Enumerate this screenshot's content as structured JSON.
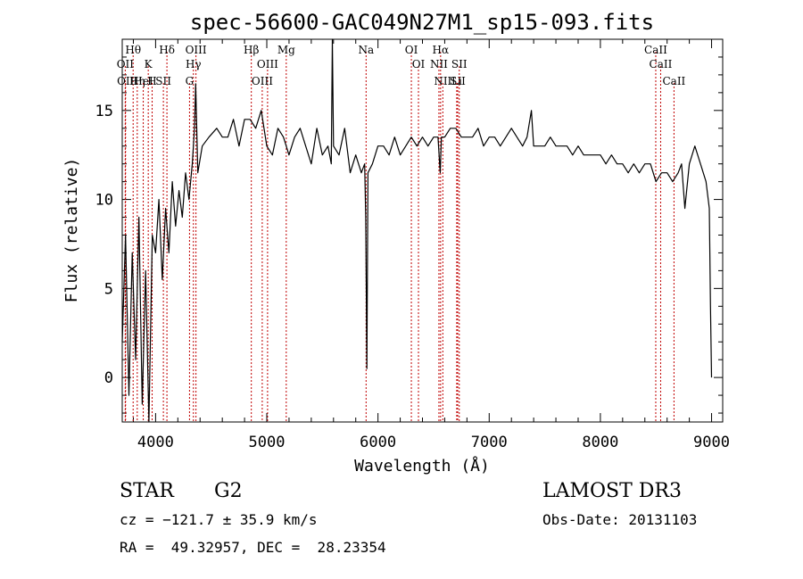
{
  "chart_data": {
    "type": "line",
    "title": "spec-56600-GAC049N27M1_sp15-093.fits",
    "xlabel": "Wavelength (Å)",
    "ylabel": "Flux (relative)",
    "xlim": [
      3700,
      9100
    ],
    "ylim": [
      -2.5,
      19
    ],
    "xticks": [
      4000,
      5000,
      6000,
      7000,
      8000,
      9000
    ],
    "yticks": [
      0,
      5,
      10,
      15
    ],
    "xtick_labels": [
      "4000",
      "5000",
      "6000",
      "7000",
      "8000",
      "9000"
    ],
    "ytick_labels": [
      "0",
      "5",
      "10",
      "15"
    ],
    "grid": false,
    "line_color": "#000000",
    "marker_color": "#c00000",
    "series": [
      {
        "x": [
          3700,
          3730,
          3760,
          3790,
          3820,
          3850,
          3880,
          3910,
          3940,
          3970,
          4000,
          4030,
          4060,
          4090,
          4120,
          4150,
          4180,
          4210,
          4240,
          4270,
          4300,
          4330,
          4350,
          4360,
          4380,
          4420,
          4480,
          4550,
          4600,
          4650,
          4700,
          4750,
          4800,
          4850,
          4900,
          4950,
          5000,
          5050,
          5100,
          5150,
          5200,
          5250,
          5300,
          5350,
          5400,
          5450,
          5500,
          5550,
          5580,
          5590,
          5600,
          5650,
          5700,
          5750,
          5800,
          5850,
          5880,
          5890,
          5895,
          5900,
          5910,
          5950,
          6000,
          6050,
          6100,
          6150,
          6200,
          6250,
          6300,
          6350,
          6400,
          6450,
          6500,
          6540,
          6560,
          6570,
          6600,
          6650,
          6700,
          6750,
          6800,
          6850,
          6900,
          6950,
          7000,
          7050,
          7100,
          7150,
          7200,
          7250,
          7300,
          7340,
          7380,
          7400,
          7450,
          7500,
          7550,
          7600,
          7650,
          7700,
          7750,
          7800,
          7850,
          7900,
          7950,
          8000,
          8050,
          8100,
          8150,
          8200,
          8250,
          8300,
          8350,
          8400,
          8450,
          8500,
          8550,
          8600,
          8650,
          8700,
          8730,
          8760,
          8800,
          8850,
          8900,
          8950,
          8980,
          8990,
          9000
        ],
        "y": [
          2.0,
          8.0,
          -1.0,
          7.0,
          1.0,
          9.0,
          -1.5,
          6.0,
          -2.5,
          8.0,
          7.0,
          10.0,
          5.5,
          9.5,
          7.0,
          11.0,
          8.5,
          10.5,
          9.0,
          11.5,
          10.0,
          12.0,
          14.0,
          16.5,
          11.5,
          13.0,
          13.5,
          14.0,
          13.5,
          13.5,
          14.5,
          13.0,
          14.5,
          14.5,
          14.0,
          15.0,
          13.0,
          12.5,
          14.0,
          13.5,
          12.5,
          13.5,
          14.0,
          13.0,
          12.0,
          14.0,
          12.5,
          13.0,
          12.0,
          19.0,
          13.0,
          12.5,
          14.0,
          11.5,
          12.5,
          11.5,
          12.0,
          9.0,
          4.5,
          0.5,
          11.5,
          12.0,
          13.0,
          13.0,
          12.5,
          13.5,
          12.5,
          13.0,
          13.5,
          13.0,
          13.5,
          13.0,
          13.5,
          13.5,
          11.5,
          13.5,
          13.5,
          14.0,
          14.0,
          13.5,
          13.5,
          13.5,
          14.0,
          13.0,
          13.5,
          13.5,
          13.0,
          13.5,
          14.0,
          13.5,
          13.0,
          13.5,
          15.0,
          13.0,
          13.0,
          13.0,
          13.5,
          13.0,
          13.0,
          13.0,
          12.5,
          13.0,
          12.5,
          12.5,
          12.5,
          12.5,
          12.0,
          12.5,
          12.0,
          12.0,
          11.5,
          12.0,
          11.5,
          12.0,
          12.0,
          11.0,
          11.5,
          11.5,
          11.0,
          11.5,
          12.0,
          9.5,
          12.0,
          13.0,
          12.0,
          11.0,
          9.5,
          4.0,
          0.0
        ]
      }
    ],
    "lines": [
      {
        "label": "Hθ",
        "x": 3798
      },
      {
        "label": "OII",
        "x": 3727
      },
      {
        "label": "OII",
        "x": 3730
      },
      {
        "label": "Hη",
        "x": 3835
      },
      {
        "label": "K",
        "x": 3934
      },
      {
        "label": "HeI",
        "x": 3889
      },
      {
        "label": "H",
        "x": 3969
      },
      {
        "label": "Hδ",
        "x": 4102
      },
      {
        "label": "SII",
        "x": 4070
      },
      {
        "label": "OIII",
        "x": 4363
      },
      {
        "label": "Hγ",
        "x": 4340
      },
      {
        "label": "G",
        "x": 4305
      },
      {
        "label": "Hβ",
        "x": 4861
      },
      {
        "label": "OIII",
        "x": 5007
      },
      {
        "label": "OIII",
        "x": 4959
      },
      {
        "label": "Mg",
        "x": 5175
      },
      {
        "label": "Na",
        "x": 5893
      },
      {
        "label": "OI",
        "x": 6300
      },
      {
        "label": "OI",
        "x": 6364
      },
      {
        "label": "Hα",
        "x": 6563
      },
      {
        "label": "NII",
        "x": 6548
      },
      {
        "label": "NII",
        "x": 6583
      },
      {
        "label": "SII",
        "x": 6717
      },
      {
        "label": "SII",
        "x": 6731
      },
      {
        "label": "Li",
        "x": 6708
      },
      {
        "label": "CaII",
        "x": 8498
      },
      {
        "label": "CaII",
        "x": 8542
      },
      {
        "label": "CaII",
        "x": 8662
      }
    ]
  },
  "footer": {
    "object_class": "STAR",
    "subclass": "G2",
    "survey": "LAMOST DR3",
    "redshift": "cz = −121.7 ± 35.9 km/s",
    "obs_date": "Obs-Date: 20131103",
    "coords": "RA =  49.32957, DEC =  28.23354"
  }
}
